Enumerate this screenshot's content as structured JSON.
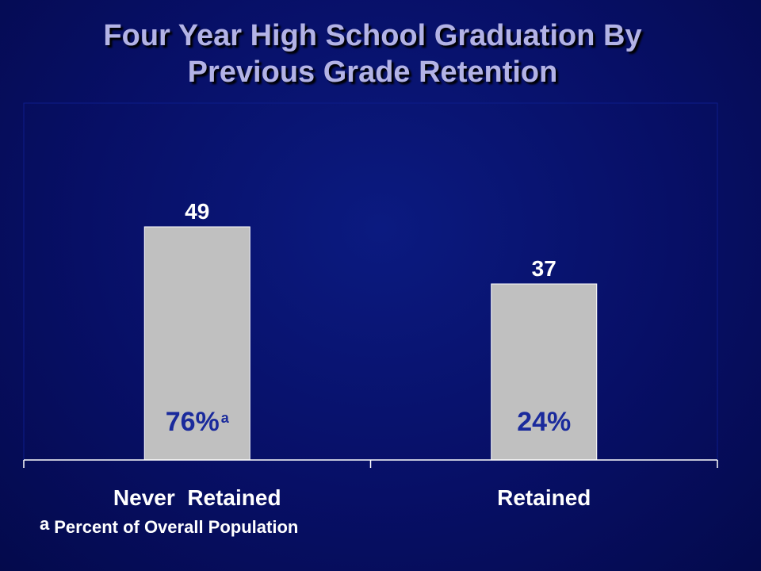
{
  "colors": {
    "bar": "#c0c0c0",
    "bar_border": "#ffffff",
    "value_label": "#ffffff",
    "share_label": "#1a2a9c",
    "axis": "#ffffff",
    "title": "#b3b3e6"
  },
  "footnote": {
    "marker": "a",
    "text": "Percent of Overall Population"
  },
  "chart_data": {
    "type": "bar",
    "title": "Four Year High School Graduation By Previous Grade Retention",
    "title_lines": [
      "Four Year High School Graduation By",
      "Previous Grade Retention"
    ],
    "categories": [
      "Never  Retained",
      "Retained"
    ],
    "values": [
      49,
      37
    ],
    "data_labels": [
      "49",
      "37"
    ],
    "share_labels": [
      {
        "text": "76%",
        "superscript": "a"
      },
      {
        "text": "24%",
        "superscript": ""
      }
    ],
    "xlabel": "",
    "ylabel": "",
    "ylim": [
      0,
      72
    ],
    "grid": false,
    "legend": "none"
  }
}
